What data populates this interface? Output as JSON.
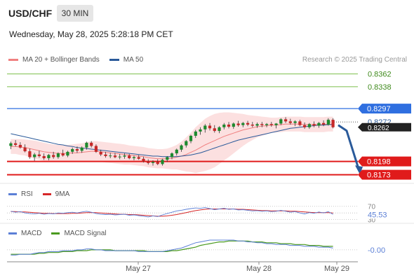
{
  "header": {
    "symbol": "USD/CHF",
    "timeframe": "30 MIN",
    "datetime": "Wednesday, May 28, 2025 5:28:18 PM CET",
    "credit": "Research © 2025 Trading Central"
  },
  "colors": {
    "bollinger": "#f08080",
    "ma50": "#2a5a9a",
    "target_line": "#7cbf4a",
    "pivot_line": "#2f6fe0",
    "support_line": "#e01b1b",
    "candle_up": "#1d8a2e",
    "candle_down": "#c62828",
    "rsi": "#5b7fd6",
    "rsi_ma": "#d62728",
    "macd": "#5b7fd6",
    "macd_signal": "#4a9a1f",
    "arrow": "#2a5a9a"
  },
  "legend": {
    "ma20_label": "MA 20 + Bollinger Bands",
    "ma50_label": "MA 50"
  },
  "rsi_legend": {
    "rsi_label": "RSI",
    "ma_label": "9MA"
  },
  "macd_legend": {
    "macd_label": "MACD",
    "signal_label": "MACD Signal"
  },
  "chart_data": {
    "type": "candlestick",
    "price_range": [
      0.8162,
      0.8372
    ],
    "levels": [
      {
        "label": "0.8362",
        "value": 0.8362,
        "kind": "resistance"
      },
      {
        "label": "0.8338",
        "value": 0.8338,
        "kind": "resistance"
      },
      {
        "label": "0.8297",
        "value": 0.8297,
        "kind": "pivot"
      },
      {
        "label": "0.8198",
        "value": 0.8198,
        "kind": "support"
      },
      {
        "label": "0.8173",
        "value": 0.8173,
        "kind": "support"
      }
    ],
    "last_price": {
      "label": "0.8272",
      "value": 0.8272
    },
    "current_price": {
      "label": "0.8262",
      "value": 0.8262
    },
    "x_ticks": [
      "May 27",
      "May 28",
      "May 29"
    ],
    "candles": [
      [
        0.8227,
        0.8235,
        0.8221,
        0.8232
      ],
      [
        0.8232,
        0.8238,
        0.8226,
        0.8229
      ],
      [
        0.8229,
        0.8234,
        0.8222,
        0.8224
      ],
      [
        0.8224,
        0.823,
        0.8215,
        0.8217
      ],
      [
        0.8217,
        0.8222,
        0.8203,
        0.8206
      ],
      [
        0.8206,
        0.8214,
        0.8199,
        0.8211
      ],
      [
        0.8211,
        0.8218,
        0.8205,
        0.8208
      ],
      [
        0.8208,
        0.8213,
        0.8201,
        0.8204
      ],
      [
        0.8204,
        0.8212,
        0.82,
        0.821
      ],
      [
        0.821,
        0.8216,
        0.8203,
        0.8206
      ],
      [
        0.8206,
        0.8215,
        0.8203,
        0.8213
      ],
      [
        0.8213,
        0.822,
        0.8207,
        0.8209
      ],
      [
        0.8209,
        0.8218,
        0.8206,
        0.8216
      ],
      [
        0.8216,
        0.8224,
        0.8212,
        0.8221
      ],
      [
        0.8221,
        0.8226,
        0.8214,
        0.8218
      ],
      [
        0.8218,
        0.8226,
        0.8214,
        0.8224
      ],
      [
        0.8224,
        0.8235,
        0.822,
        0.8233
      ],
      [
        0.8233,
        0.8236,
        0.8224,
        0.8227
      ],
      [
        0.8227,
        0.823,
        0.8214,
        0.8216
      ],
      [
        0.8216,
        0.822,
        0.8208,
        0.8211
      ],
      [
        0.8211,
        0.8216,
        0.8205,
        0.8208
      ],
      [
        0.8208,
        0.8214,
        0.8204,
        0.8209
      ],
      [
        0.8209,
        0.8214,
        0.8204,
        0.8206
      ],
      [
        0.8206,
        0.8212,
        0.8202,
        0.8207
      ],
      [
        0.8207,
        0.8213,
        0.8203,
        0.8209
      ],
      [
        0.8209,
        0.8212,
        0.8202,
        0.8204
      ],
      [
        0.8204,
        0.8209,
        0.82,
        0.8206
      ],
      [
        0.8206,
        0.821,
        0.8201,
        0.8203
      ],
      [
        0.8203,
        0.8207,
        0.8196,
        0.8198
      ],
      [
        0.8198,
        0.8202,
        0.8192,
        0.8195
      ],
      [
        0.8195,
        0.82,
        0.819,
        0.8197
      ],
      [
        0.8197,
        0.8202,
        0.8191,
        0.8193
      ],
      [
        0.8193,
        0.8203,
        0.819,
        0.8201
      ],
      [
        0.8201,
        0.8208,
        0.8197,
        0.8206
      ],
      [
        0.8206,
        0.8215,
        0.8202,
        0.8213
      ],
      [
        0.8213,
        0.8222,
        0.8209,
        0.822
      ],
      [
        0.822,
        0.823,
        0.8216,
        0.8228
      ],
      [
        0.8228,
        0.8238,
        0.8224,
        0.8236
      ],
      [
        0.8236,
        0.8248,
        0.8232,
        0.8246
      ],
      [
        0.8246,
        0.8257,
        0.8242,
        0.8254
      ],
      [
        0.8254,
        0.8262,
        0.8248,
        0.8258
      ],
      [
        0.8258,
        0.8268,
        0.8252,
        0.8265
      ],
      [
        0.8265,
        0.827,
        0.8256,
        0.826
      ],
      [
        0.826,
        0.8266,
        0.8252,
        0.8255
      ],
      [
        0.8255,
        0.8264,
        0.8251,
        0.8262
      ],
      [
        0.8262,
        0.827,
        0.8258,
        0.8267
      ],
      [
        0.8267,
        0.8272,
        0.826,
        0.8263
      ],
      [
        0.8263,
        0.8271,
        0.8259,
        0.8269
      ],
      [
        0.8269,
        0.8274,
        0.8263,
        0.8266
      ],
      [
        0.8266,
        0.8272,
        0.8262,
        0.827
      ],
      [
        0.827,
        0.8274,
        0.8264,
        0.8267
      ],
      [
        0.8267,
        0.8272,
        0.8262,
        0.8265
      ],
      [
        0.8265,
        0.8271,
        0.8261,
        0.8268
      ],
      [
        0.8268,
        0.8272,
        0.8262,
        0.8266
      ],
      [
        0.8266,
        0.827,
        0.8262,
        0.8268
      ],
      [
        0.8268,
        0.8272,
        0.8263,
        0.8266
      ],
      [
        0.8266,
        0.827,
        0.826,
        0.8269
      ],
      [
        0.8269,
        0.8279,
        0.8266,
        0.8277
      ],
      [
        0.8277,
        0.8281,
        0.827,
        0.8273
      ],
      [
        0.8273,
        0.8278,
        0.8267,
        0.827
      ],
      [
        0.827,
        0.8275,
        0.8264,
        0.8273
      ],
      [
        0.8273,
        0.8276,
        0.8264,
        0.8266
      ],
      [
        0.8266,
        0.8271,
        0.8259,
        0.8262
      ],
      [
        0.8262,
        0.827,
        0.8259,
        0.8268
      ],
      [
        0.8268,
        0.8273,
        0.8262,
        0.8265
      ],
      [
        0.8265,
        0.8272,
        0.8261,
        0.827
      ],
      [
        0.827,
        0.8275,
        0.8264,
        0.8267
      ],
      [
        0.8267,
        0.8279,
        0.8265,
        0.8276
      ],
      [
        0.8276,
        0.8279,
        0.826,
        0.8262
      ]
    ],
    "ma20": [
      0.8226,
      0.8226,
      0.8225,
      0.8224,
      0.8222,
      0.822,
      0.8218,
      0.8216,
      0.8215,
      0.8214,
      0.8213,
      0.8213,
      0.8213,
      0.8214,
      0.8214,
      0.8215,
      0.8216,
      0.8217,
      0.8217,
      0.8216,
      0.8215,
      0.8214,
      0.8213,
      0.8212,
      0.8211,
      0.821,
      0.8209,
      0.8208,
      0.8207,
      0.8205,
      0.8204,
      0.8203,
      0.8203,
      0.8203,
      0.8204,
      0.8206,
      0.8208,
      0.8211,
      0.8215,
      0.8219,
      0.8224,
      0.8229,
      0.8233,
      0.8237,
      0.8241,
      0.8245,
      0.8248,
      0.8251,
      0.8254,
      0.8257,
      0.8259,
      0.8261,
      0.8263,
      0.8264,
      0.8265,
      0.8266,
      0.8266,
      0.8267,
      0.8268,
      0.8268,
      0.8268,
      0.8268,
      0.8267,
      0.8267,
      0.8267,
      0.8267,
      0.8267,
      0.8268,
      0.8268
    ],
    "bb_upper": [
      0.824,
      0.824,
      0.824,
      0.8239,
      0.8238,
      0.8237,
      0.8235,
      0.8233,
      0.8231,
      0.823,
      0.8229,
      0.8229,
      0.8229,
      0.823,
      0.8231,
      0.8232,
      0.8234,
      0.8236,
      0.8236,
      0.8235,
      0.8234,
      0.8233,
      0.8232,
      0.8231,
      0.823,
      0.8228,
      0.8227,
      0.8226,
      0.8225,
      0.8223,
      0.8222,
      0.8221,
      0.8221,
      0.8222,
      0.8225,
      0.8229,
      0.8235,
      0.8243,
      0.8252,
      0.8262,
      0.827,
      0.8278,
      0.8283,
      0.8287,
      0.8289,
      0.829,
      0.829,
      0.8289,
      0.8288,
      0.8287,
      0.8285,
      0.8284,
      0.8283,
      0.8282,
      0.8281,
      0.828,
      0.828,
      0.8281,
      0.8282,
      0.8282,
      0.8282,
      0.8282,
      0.8281,
      0.8281,
      0.8281,
      0.8281,
      0.8281,
      0.8282,
      0.8282
    ],
    "bb_lower": [
      0.8212,
      0.8212,
      0.821,
      0.8209,
      0.8206,
      0.8203,
      0.8201,
      0.8199,
      0.8199,
      0.8198,
      0.8197,
      0.8197,
      0.8197,
      0.8198,
      0.8197,
      0.8198,
      0.8198,
      0.8198,
      0.8198,
      0.8197,
      0.8196,
      0.8195,
      0.8194,
      0.8193,
      0.8192,
      0.8192,
      0.8191,
      0.819,
      0.8189,
      0.8187,
      0.8186,
      0.8185,
      0.8185,
      0.8184,
      0.8183,
      0.8183,
      0.8181,
      0.8179,
      0.8178,
      0.8176,
      0.8178,
      0.818,
      0.8183,
      0.8187,
      0.8193,
      0.82,
      0.8206,
      0.8213,
      0.822,
      0.8227,
      0.8233,
      0.8238,
      0.8243,
      0.8246,
      0.8249,
      0.8252,
      0.8252,
      0.8253,
      0.8254,
      0.8254,
      0.8254,
      0.8254,
      0.8253,
      0.8253,
      0.8253,
      0.8253,
      0.8253,
      0.8254,
      0.8254
    ],
    "ma50": [
      0.825,
      0.8248,
      0.8246,
      0.8244,
      0.8242,
      0.824,
      0.8238,
      0.8236,
      0.8234,
      0.8232,
      0.823,
      0.8229,
      0.8227,
      0.8226,
      0.8224,
      0.8223,
      0.8222,
      0.8221,
      0.822,
      0.8219,
      0.8218,
      0.8217,
      0.8216,
      0.8215,
      0.8214,
      0.8213,
      0.8212,
      0.8211,
      0.821,
      0.8209,
      0.8208,
      0.8208,
      0.8207,
      0.8207,
      0.8207,
      0.8207,
      0.8208,
      0.8209,
      0.821,
      0.8212,
      0.8214,
      0.8217,
      0.822,
      0.8223,
      0.8226,
      0.8229,
      0.8232,
      0.8235,
      0.8238,
      0.824,
      0.8242,
      0.8244,
      0.8246,
      0.8248,
      0.825,
      0.8252,
      0.8254,
      0.8256,
      0.8258,
      0.826,
      0.8261,
      0.8262,
      0.8263,
      0.8264,
      0.8265,
      0.8266,
      0.8266,
      0.8267,
      0.8267
    ],
    "rsi": {
      "range": [
        25,
        80
      ],
      "levels": [
        70,
        50,
        30
      ],
      "current_label": "45.53",
      "current_value": 45.53,
      "rsi_values": [
        55,
        52,
        54,
        50,
        48,
        47,
        49,
        46,
        48,
        47,
        50,
        49,
        51,
        52,
        50,
        53,
        55,
        52,
        48,
        46,
        45,
        46,
        44,
        45,
        46,
        43,
        44,
        42,
        40,
        38,
        41,
        39,
        44,
        48,
        52,
        56,
        58,
        61,
        63,
        65,
        64,
        66,
        63,
        60,
        62,
        64,
        61,
        62,
        59,
        60,
        58,
        56,
        57,
        55,
        56,
        54,
        55,
        58,
        55,
        52,
        54,
        50,
        47,
        51,
        49,
        53,
        50,
        54,
        45.5
      ],
      "ma_values": [
        54,
        54,
        53,
        53,
        52,
        51,
        50,
        49,
        49,
        48,
        48,
        48,
        48,
        49,
        49,
        50,
        51,
        51,
        51,
        50,
        49,
        48,
        47,
        46,
        46,
        45,
        45,
        44,
        43,
        42,
        41,
        40,
        40,
        41,
        43,
        45,
        48,
        51,
        54,
        57,
        59,
        61,
        62,
        62,
        62,
        62,
        62,
        62,
        61,
        61,
        60,
        59,
        58,
        57,
        57,
        56,
        56,
        56,
        56,
        55,
        55,
        54,
        53,
        52,
        51,
        51,
        51,
        51,
        50
      ]
    },
    "macd": {
      "range": [
        -0.0012,
        0.0015
      ],
      "zero_label": "-0.00",
      "macd_values": [
        -0.0006,
        -0.0006,
        -0.0005,
        -0.0005,
        -0.0005,
        -0.0004,
        -0.0003,
        -0.0003,
        -0.0002,
        -0.0002,
        -0.0002,
        -0.0001,
        -0.0001,
        -0.0001,
        0.0,
        0.0,
        0.0001,
        0.0001,
        0.0,
        0.0,
        -0.0001,
        -0.0001,
        -0.0001,
        -0.0001,
        -0.0001,
        -0.0001,
        -0.0001,
        -0.0002,
        -0.0002,
        -0.0002,
        -0.0002,
        -0.0002,
        -0.0002,
        -0.0001,
        0.0,
        0.0001,
        0.0002,
        0.0004,
        0.0006,
        0.0008,
        0.0009,
        0.001,
        0.0011,
        0.0011,
        0.0011,
        0.0011,
        0.0011,
        0.0011,
        0.001,
        0.001,
        0.0009,
        0.0009,
        0.0008,
        0.0008,
        0.0007,
        0.0007,
        0.0006,
        0.0006,
        0.0006,
        0.0005,
        0.0005,
        0.0005,
        0.0004,
        0.0004,
        0.0004,
        0.0003,
        0.0003,
        0.0003,
        0.0002
      ],
      "signal_values": [
        -0.0005,
        -0.0005,
        -0.0005,
        -0.0005,
        -0.0005,
        -0.0005,
        -0.0004,
        -0.0004,
        -0.0003,
        -0.0003,
        -0.0003,
        -0.0002,
        -0.0002,
        -0.0002,
        -0.0001,
        -0.0001,
        -0.0001,
        0.0,
        0.0,
        0.0,
        0.0,
        0.0,
        -0.0001,
        -0.0001,
        -0.0001,
        -0.0001,
        -0.0001,
        -0.0001,
        -0.0001,
        -0.0002,
        -0.0002,
        -0.0002,
        -0.0002,
        -0.0002,
        -0.0001,
        -0.0001,
        0.0,
        0.0001,
        0.0002,
        0.0003,
        0.0005,
        0.0006,
        0.0007,
        0.0008,
        0.0009,
        0.0009,
        0.001,
        0.001,
        0.001,
        0.001,
        0.001,
        0.0009,
        0.0009,
        0.0009,
        0.0008,
        0.0008,
        0.0008,
        0.0007,
        0.0007,
        0.0007,
        0.0006,
        0.0006,
        0.0006,
        0.0005,
        0.0005,
        0.0005,
        0.0004,
        0.0004,
        0.0004
      ]
    }
  }
}
